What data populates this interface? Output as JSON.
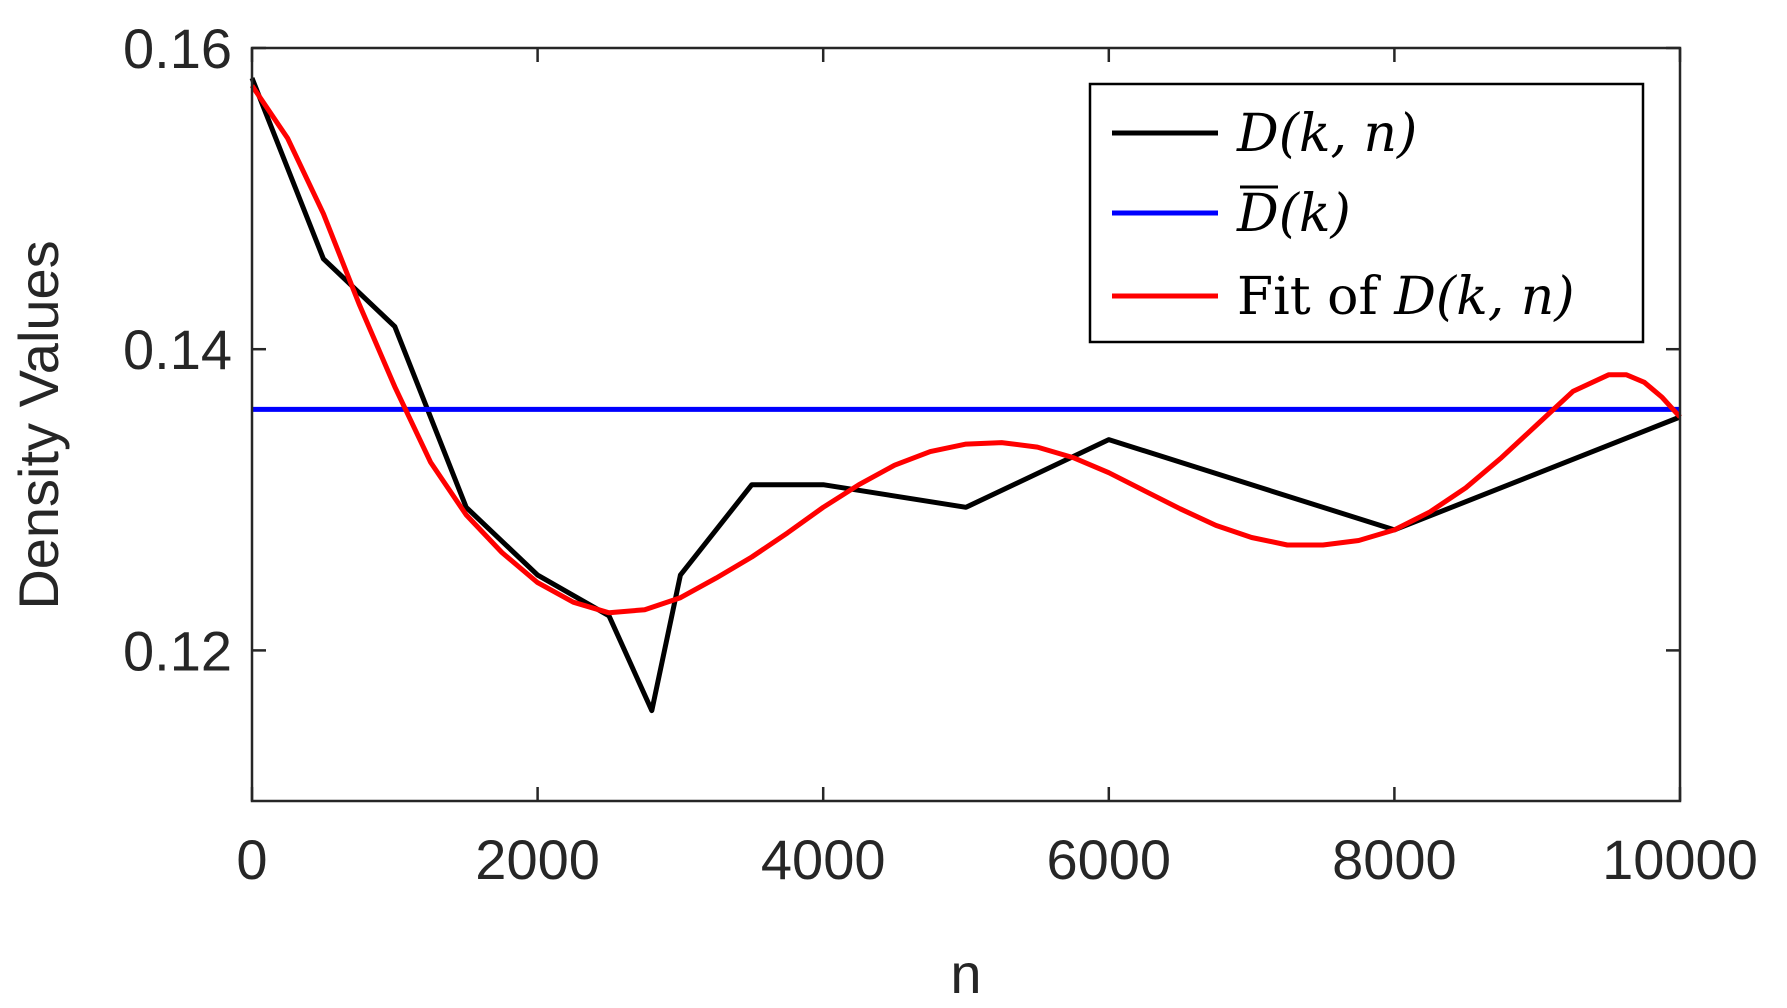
{
  "chart_data": {
    "type": "line",
    "title": "",
    "xlabel": "n",
    "ylabel": "Density Values",
    "xlim": [
      0,
      10000
    ],
    "ylim": [
      0.11,
      0.16
    ],
    "xticks": [
      0,
      2000,
      4000,
      6000,
      8000,
      10000
    ],
    "xtick_labels": [
      "0",
      "2000",
      "4000",
      "6000",
      "8000",
      "10000"
    ],
    "yticks": [
      0.12,
      0.14,
      0.16
    ],
    "ytick_labels": [
      "0.12",
      "0.14",
      "0.16"
    ],
    "grid": false,
    "legend_position": "top-right",
    "series": [
      {
        "name": "D(k, n)",
        "color": "#000000",
        "points": [
          [
            0,
            0.158
          ],
          [
            500,
            0.146
          ],
          [
            1000,
            0.1415
          ],
          [
            1500,
            0.1295
          ],
          [
            2000,
            0.125
          ],
          [
            2500,
            0.1223
          ],
          [
            2800,
            0.116
          ],
          [
            3000,
            0.125
          ],
          [
            3500,
            0.131
          ],
          [
            4000,
            0.131
          ],
          [
            5000,
            0.1295
          ],
          [
            6000,
            0.134
          ],
          [
            8000,
            0.128
          ],
          [
            10000,
            0.1355
          ]
        ]
      },
      {
        "name": "D̄(k)",
        "color": "#0000ff",
        "points": [
          [
            0,
            0.136
          ],
          [
            10000,
            0.136
          ]
        ]
      },
      {
        "name": "Fit of D(k, n)",
        "color": "#ff0000",
        "points": [
          [
            0,
            0.1575
          ],
          [
            250,
            0.154
          ],
          [
            500,
            0.149
          ],
          [
            750,
            0.143
          ],
          [
            1000,
            0.1375
          ],
          [
            1250,
            0.1325
          ],
          [
            1500,
            0.129
          ],
          [
            1750,
            0.1265
          ],
          [
            2000,
            0.1245
          ],
          [
            2250,
            0.1232
          ],
          [
            2500,
            0.1225
          ],
          [
            2750,
            0.1227
          ],
          [
            3000,
            0.1235
          ],
          [
            3250,
            0.1248
          ],
          [
            3500,
            0.1262
          ],
          [
            3750,
            0.1278
          ],
          [
            4000,
            0.1295
          ],
          [
            4250,
            0.131
          ],
          [
            4500,
            0.1323
          ],
          [
            4750,
            0.1332
          ],
          [
            5000,
            0.1337
          ],
          [
            5250,
            0.1338
          ],
          [
            5500,
            0.1335
          ],
          [
            5750,
            0.1328
          ],
          [
            6000,
            0.1318
          ],
          [
            6250,
            0.1306
          ],
          [
            6500,
            0.1294
          ],
          [
            6750,
            0.1283
          ],
          [
            7000,
            0.1275
          ],
          [
            7250,
            0.127
          ],
          [
            7500,
            0.127
          ],
          [
            7750,
            0.1273
          ],
          [
            8000,
            0.128
          ],
          [
            8250,
            0.1292
          ],
          [
            8500,
            0.1308
          ],
          [
            8750,
            0.1328
          ],
          [
            9000,
            0.135
          ],
          [
            9250,
            0.1372
          ],
          [
            9500,
            0.1383
          ],
          [
            9625,
            0.1383
          ],
          [
            9750,
            0.1378
          ],
          [
            9875,
            0.1368
          ],
          [
            10000,
            0.1355
          ]
        ]
      }
    ],
    "legend_entries": [
      {
        "label": "D(k, n)",
        "color": "#000000"
      },
      {
        "label": "D(k)",
        "color": "#0000ff",
        "overline": true
      },
      {
        "prefix": "Fit of ",
        "label": "D(k, n)",
        "color": "#ff0000"
      }
    ]
  }
}
